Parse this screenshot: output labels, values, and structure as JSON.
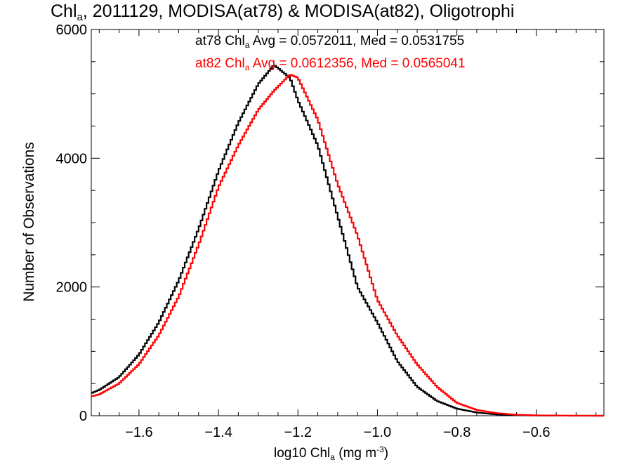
{
  "title": {
    "pre": "Chl",
    "sub": "a",
    "post": ", 2011129, MODISA(at78) & MODISA(at82), Oligotrophi"
  },
  "legend": {
    "black": {
      "pre": "at78 Chl",
      "sub": "a",
      "post": " Avg = 0.0572011, Med = 0.0531755"
    },
    "red": {
      "pre": "at82 Chl",
      "sub": "a",
      "post": " Avg = 0.0612356, Med = 0.0565041"
    }
  },
  "axes": {
    "xlabel": {
      "pre": "log10 Chl",
      "sub": "a",
      "mid": " (mg m",
      "sup": "-3",
      "post": ")"
    },
    "ylabel": "Number of Observations"
  },
  "colors": {
    "series1": "#000000",
    "series2": "#ff0000",
    "axis": "#000000"
  },
  "chart_data": {
    "type": "line",
    "step": true,
    "xlim": [
      -1.72,
      -0.43
    ],
    "ylim": [
      0,
      6000
    ],
    "x_ticks": [
      -1.6,
      -1.4,
      -1.2,
      -1.0,
      -0.8,
      -0.6
    ],
    "x_tick_labels": [
      "−1.6",
      "−1.4",
      "−1.2",
      "−1.0",
      "−0.8",
      "−0.6"
    ],
    "y_ticks": [
      0,
      2000,
      4000,
      6000
    ],
    "y_tick_labels": [
      "0",
      "2000",
      "4000",
      "6000"
    ],
    "grid": false,
    "legend_position": "top",
    "x": [
      -1.72,
      -1.7,
      -1.65,
      -1.6,
      -1.55,
      -1.5,
      -1.45,
      -1.4,
      -1.35,
      -1.3,
      -1.26,
      -1.22,
      -1.2,
      -1.15,
      -1.1,
      -1.05,
      -1.0,
      -0.95,
      -0.9,
      -0.85,
      -0.8,
      -0.75,
      -0.7,
      -0.65,
      -0.6,
      -0.55,
      -0.5,
      -0.45
    ],
    "series": [
      {
        "name": "at78",
        "values": [
          350,
          400,
          600,
          950,
          1450,
          2100,
          2900,
          3800,
          4550,
          5150,
          5450,
          5250,
          4900,
          4200,
          3100,
          2000,
          1450,
          850,
          450,
          230,
          110,
          50,
          20,
          8,
          3,
          1,
          0,
          0
        ]
      },
      {
        "name": "at82",
        "values": [
          300,
          330,
          500,
          800,
          1250,
          1850,
          2650,
          3550,
          4200,
          4750,
          5050,
          5300,
          5250,
          4600,
          3600,
          2800,
          1800,
          1250,
          800,
          450,
          200,
          90,
          40,
          15,
          6,
          2,
          1,
          0
        ]
      }
    ]
  }
}
